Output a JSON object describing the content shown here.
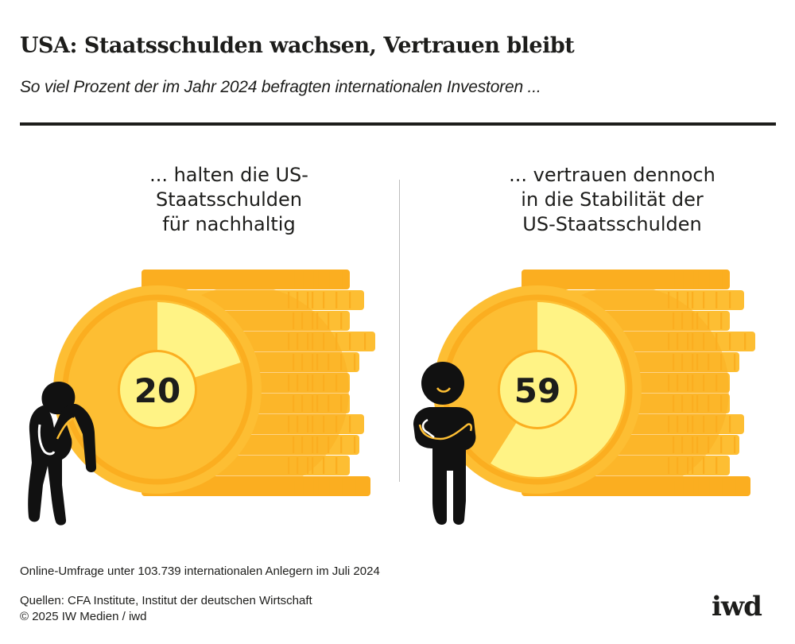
{
  "header": {
    "title": "USA: Staatsschulden wachsen, Vertrauen bleibt",
    "subtitle": "So viel Prozent der im Jahr 2024 befragten internationalen Investoren ..."
  },
  "colors": {
    "coin_dark": "#fbae20",
    "coin_mid": "#fdbe33",
    "slice": "#fff385",
    "text": "#1d1d1b",
    "divider": "#bdbdbd"
  },
  "chart_data": [
    {
      "type": "pie",
      "title": "... halten die US-Staatsschulden für nachhaltig",
      "title_lines": [
        "... halten die US-",
        "Staatsschulden",
        "für nachhaltig"
      ],
      "value": 20,
      "unit": "percent",
      "value_label": "20",
      "figure": "worried-person-icon"
    },
    {
      "type": "pie",
      "title": "... vertrauen dennoch in die Stabilität der US-Staatsschulden",
      "title_lines": [
        "... vertrauen dennoch",
        "in die Stabilität der",
        "US-Staatsschulden"
      ],
      "value": 59,
      "unit": "percent",
      "value_label": "59",
      "figure": "confident-person-icon"
    }
  ],
  "footer": {
    "note": "Online-Umfrage unter 103.739 internationalen Anlegern im Juli 2024",
    "sources": "Quellen: CFA Institute, Institut der deutschen Wirtschaft",
    "copyright": "© 2025 IW Medien / iwd",
    "logo": "iwd"
  }
}
